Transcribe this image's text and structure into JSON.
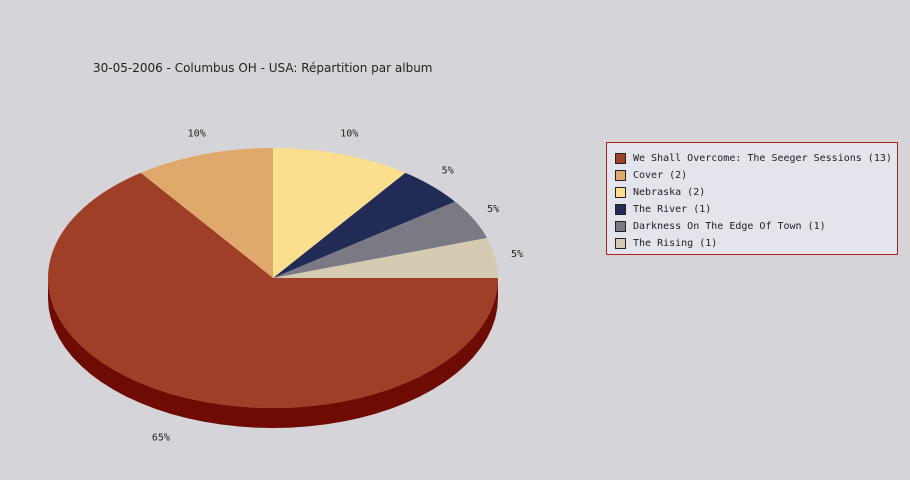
{
  "chart_data": {
    "type": "pie",
    "title": "30-05-2006 - Columbus OH - USA:  Répartition par album",
    "slices": [
      {
        "name": "We Shall Overcome: The Seeger Sessions",
        "count": 13,
        "legend": "We Shall Overcome: The Seeger Sessions (13)",
        "percent_label": "65%",
        "color": "#a03f28",
        "side_color": "#6e0b02"
      },
      {
        "name": "Cover",
        "count": 2,
        "legend": "Cover (2)",
        "percent_label": "10%",
        "color": "#e0a96c",
        "side_color": "#a8743c"
      },
      {
        "name": "Nebraska",
        "count": 2,
        "legend": "Nebraska (2)",
        "percent_label": "10%",
        "color": "#fcde8f",
        "side_color": "#c9ac60"
      },
      {
        "name": "The River",
        "count": 1,
        "legend": "The River (1)",
        "percent_label": "5%",
        "color": "#222a56",
        "side_color": "#10143a"
      },
      {
        "name": "Darkness On The Edge Of Town",
        "count": 1,
        "legend": "Darkness On The Edge Of Town (1)",
        "percent_label": "5%",
        "color": "#7a7984",
        "side_color": "#55545e"
      },
      {
        "name": "The Rising",
        "count": 1,
        "legend": "The Rising (1)",
        "percent_label": "5%",
        "color": "#d5cab2",
        "side_color": "#a89c84"
      }
    ],
    "legend_position": "right"
  }
}
